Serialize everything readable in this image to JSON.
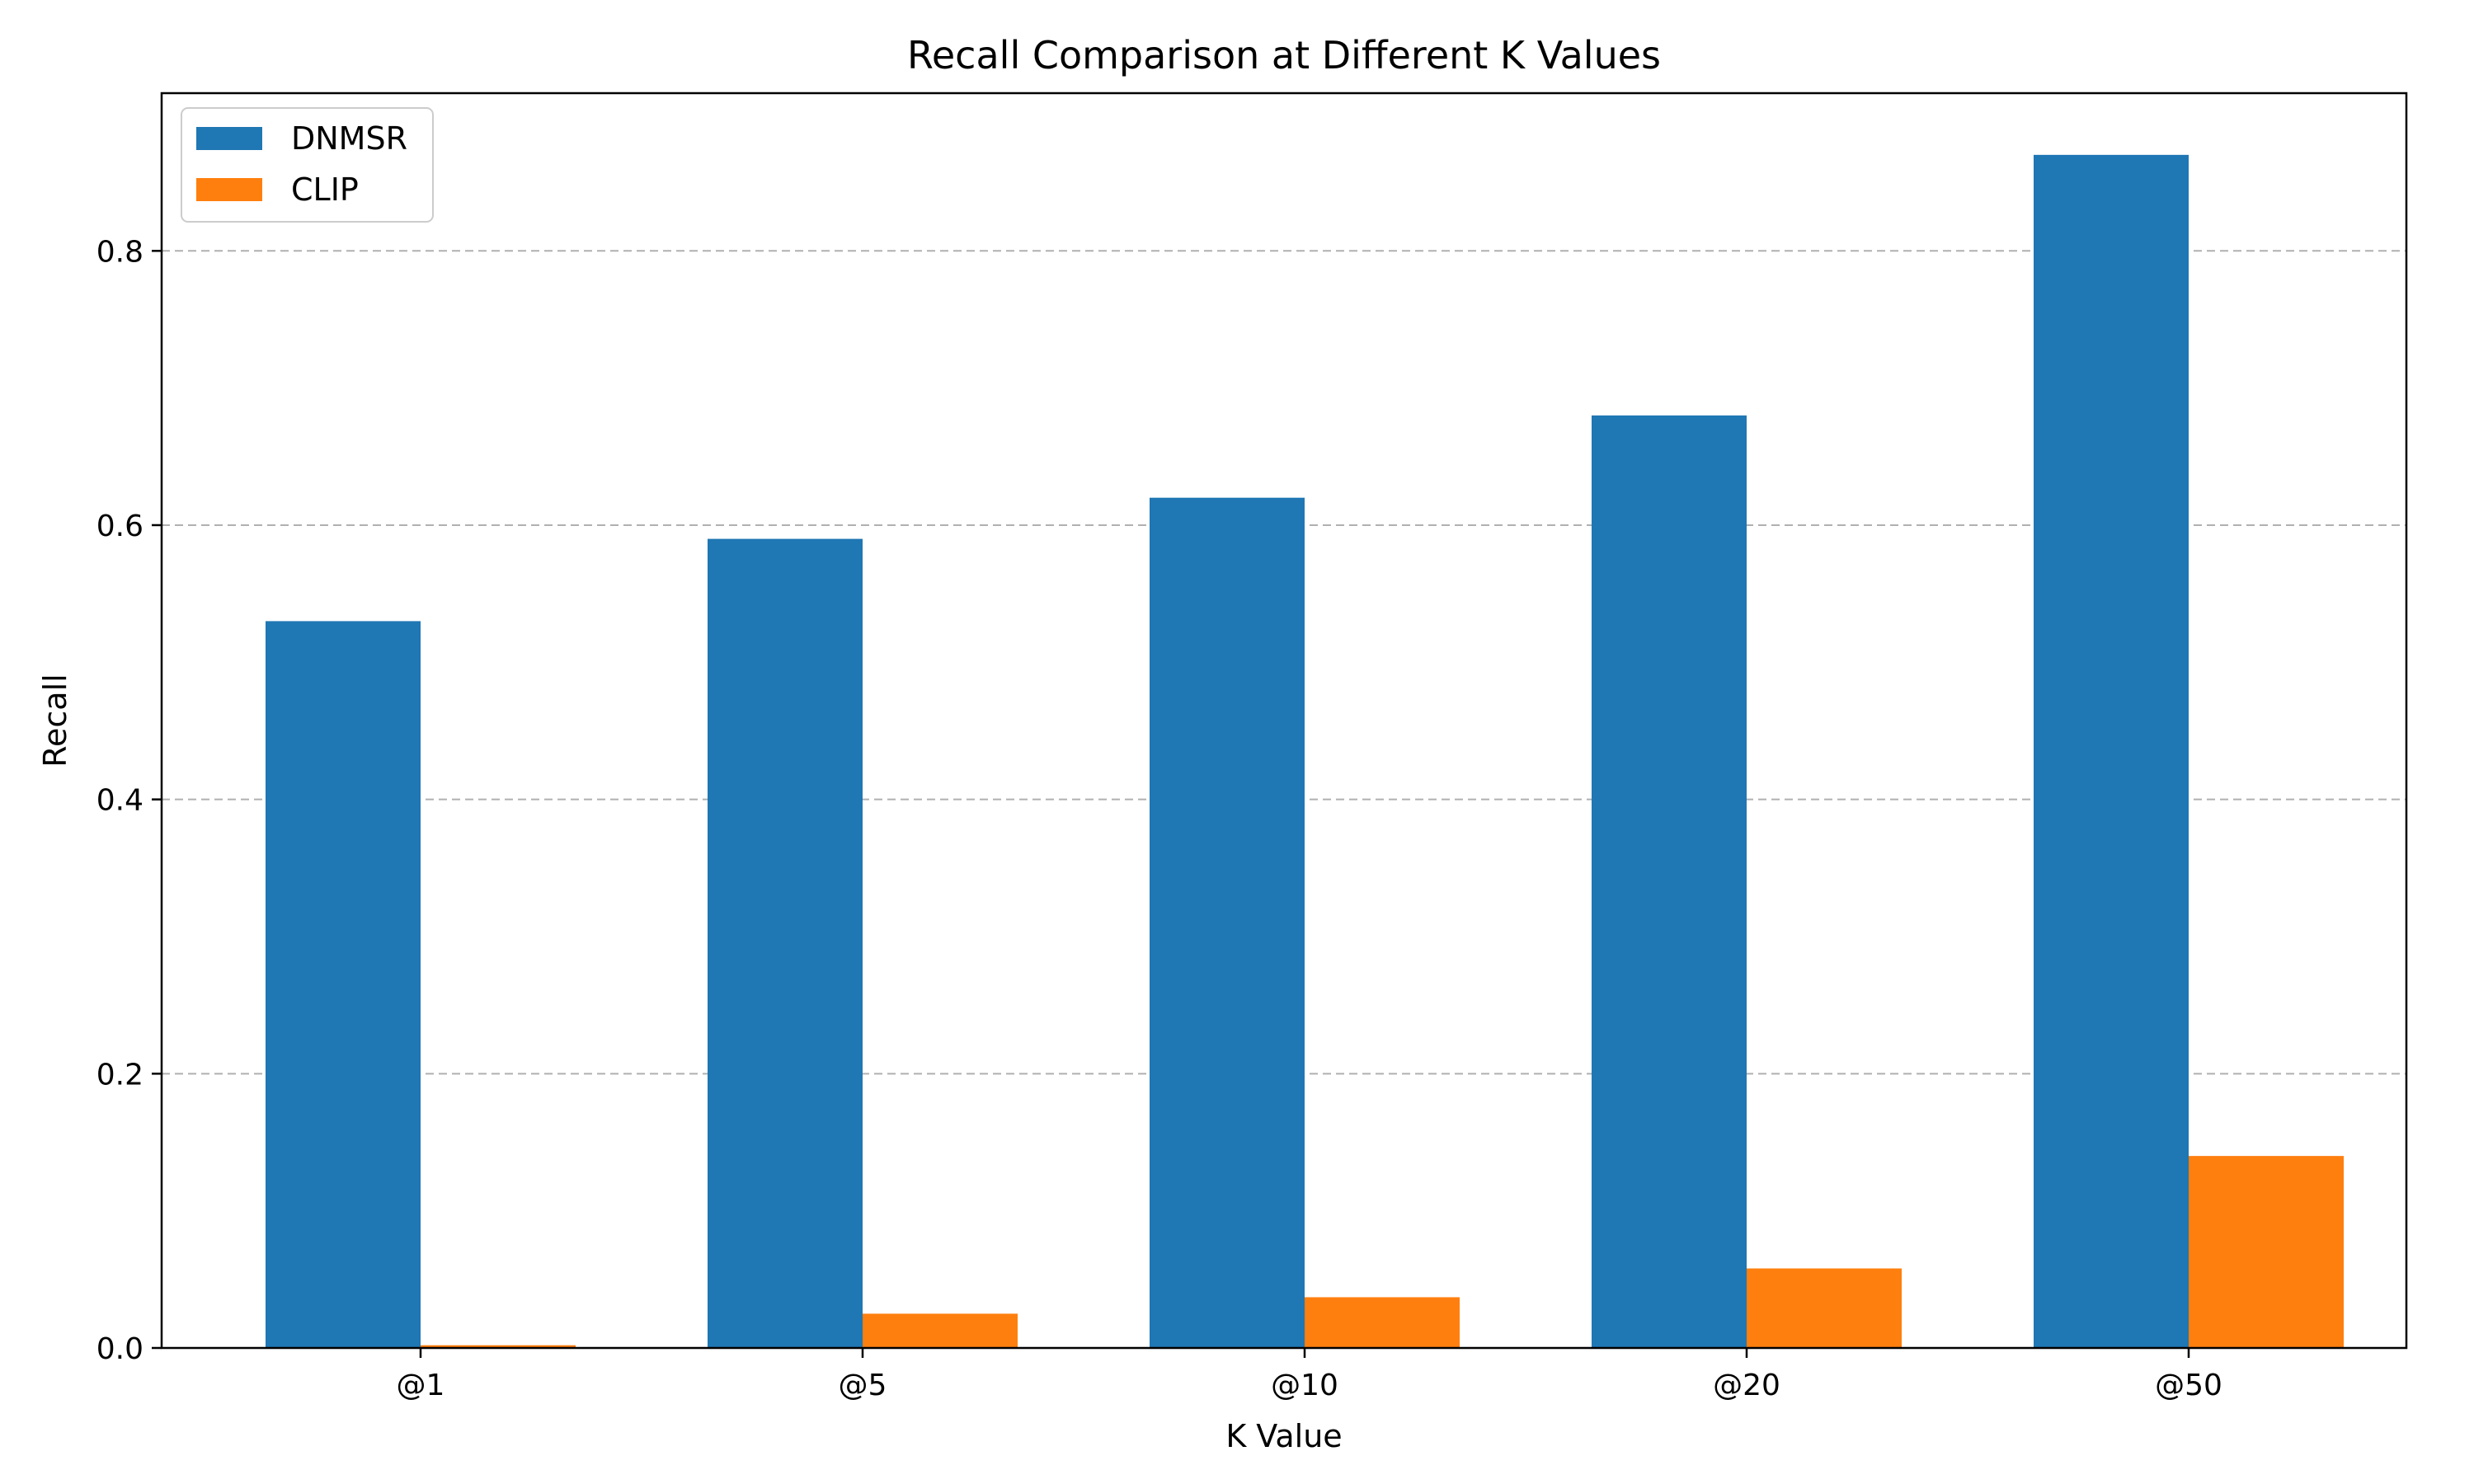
{
  "chart_data": {
    "type": "bar",
    "title": "Recall Comparison at Different K Values",
    "xlabel": "K Value",
    "ylabel": "Recall",
    "categories": [
      "@1",
      "@5",
      "@10",
      "@20",
      "@50"
    ],
    "series": [
      {
        "name": "DNMSR",
        "color": "#1f77b4",
        "values": [
          0.53,
          0.59,
          0.62,
          0.68,
          0.87
        ]
      },
      {
        "name": "CLIP",
        "color": "#ff7f0e",
        "values": [
          0.002,
          0.025,
          0.037,
          0.058,
          0.14
        ]
      }
    ],
    "ylim": [
      0,
      0.915
    ],
    "yticks": [
      0.0,
      0.2,
      0.4,
      0.6,
      0.8
    ],
    "ytick_labels": [
      "0.0",
      "0.2",
      "0.4",
      "0.6",
      "0.8"
    ],
    "grid": "y-dashed",
    "legend_position": "top-left"
  }
}
